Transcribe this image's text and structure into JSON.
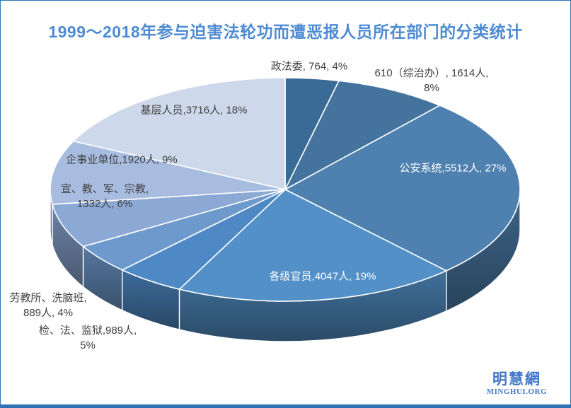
{
  "page": {
    "title": "1999～2018年参与迫害法轮功而遭恶报人员所在部门的分类统计",
    "title_color": "#4E8BD2",
    "frame_color": "#2E74B5",
    "background": "#FFFFFF"
  },
  "logo": {
    "cn": "明慧網",
    "en": "MINGHUI.ORG",
    "color": "#4377C8"
  },
  "chart_data": {
    "type": "pie",
    "style": "3d",
    "title": "1999～2018年参与迫害法轮功而遭恶报人员所在部门的分类统计",
    "unit": "人",
    "start_angle_deg": 0,
    "direction": "clockwise",
    "label_text_color_outside": "#3F3F3F",
    "label_text_color_inside": "#FFFFFF",
    "categories": [
      "政法委",
      "610（综治办）",
      "公安系统",
      "各级官员",
      "检、法、监狱",
      "劳教所、洗脑班",
      "宣、教、军、宗教",
      "企事业单位",
      "基层人员"
    ],
    "values": [
      764,
      1614,
      5512,
      4047,
      989,
      889,
      1332,
      1920,
      3716
    ],
    "percents": [
      4,
      8,
      27,
      19,
      5,
      4,
      6,
      9,
      18
    ],
    "slices": [
      {
        "name": "政法委",
        "value": 764,
        "percent": 4,
        "color": "#3A6A96",
        "label_lines": [
          "政法委, 764, 4%"
        ],
        "label_placement": "outside"
      },
      {
        "name": "610（综治办）",
        "value": 1614,
        "percent": 8,
        "color": "#44749E",
        "label_lines": [
          "610（综治办）, 1614人,",
          "8%"
        ],
        "label_placement": "outside"
      },
      {
        "name": "公安系统",
        "value": 5512,
        "percent": 27,
        "color": "#4E81AF",
        "label_lines": [
          "公安系统,5512人, 27%"
        ],
        "label_placement": "inside"
      },
      {
        "name": "各级官员",
        "value": 4047,
        "percent": 19,
        "color": "#5290C7",
        "label_lines": [
          "各级官员,4047人, 19%"
        ],
        "label_placement": "inside"
      },
      {
        "name": "检、法、监狱",
        "value": 989,
        "percent": 5,
        "color": "#4E89C5",
        "label_lines": [
          "检、法、监狱,989人,",
          "5%"
        ],
        "label_placement": "outside"
      },
      {
        "name": "劳教所、洗脑班",
        "value": 889,
        "percent": 4,
        "color": "#6E99CC",
        "label_lines": [
          "劳教所、洗脑班,",
          "889人, 4%"
        ],
        "label_placement": "outside"
      },
      {
        "name": "宣、教、军、宗教",
        "value": 1332,
        "percent": 6,
        "color": "#8CA9D6",
        "label_lines": [
          "宣、教、军、宗教,",
          "1332人, 6%"
        ],
        "label_placement": "outside"
      },
      {
        "name": "企事业单位",
        "value": 1920,
        "percent": 9,
        "color": "#A8BCE0",
        "label_lines": [
          "企事业单位,1920人, 9%"
        ],
        "label_placement": "outside"
      },
      {
        "name": "基层人员",
        "value": 3716,
        "percent": 18,
        "color": "#CDD8EB",
        "label_lines": [
          "基层人员,3716人, 18%"
        ],
        "label_placement": "outside"
      }
    ]
  }
}
